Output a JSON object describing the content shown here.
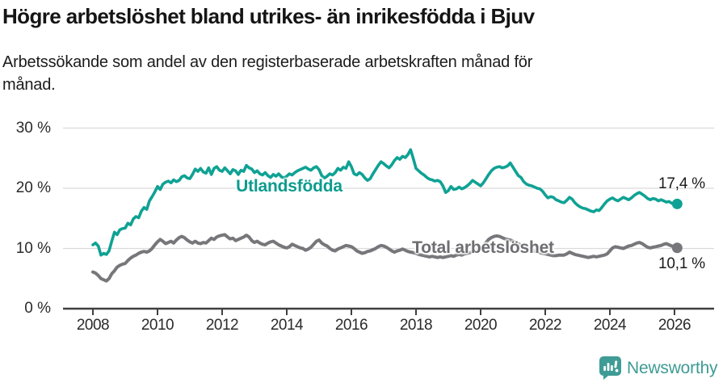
{
  "header": {
    "title": "Högre arbetslöshet bland utrikes- än inrikesfödda i Bjuv",
    "subtitle_lines": [
      "Arbetssökande som andel av den registerbaserade arbetskraften månad för",
      "månad."
    ]
  },
  "chart_data": {
    "type": "line",
    "x_start_year": 2008,
    "x_step_months": 1,
    "x_ticks": [
      {
        "year": 2008,
        "label": "2008"
      },
      {
        "year": 2010,
        "label": "2010"
      },
      {
        "year": 2012,
        "label": "2012"
      },
      {
        "year": 2014,
        "label": "2014"
      },
      {
        "year": 2016,
        "label": "2016"
      },
      {
        "year": 2018,
        "label": "2018"
      },
      {
        "year": 2020,
        "label": "2020"
      },
      {
        "year": 2022,
        "label": "2022"
      },
      {
        "year": 2024,
        "label": "2024"
      },
      {
        "year": 2026,
        "label": "2026"
      }
    ],
    "y_ticks": [
      {
        "value": 0,
        "label": "0 %"
      },
      {
        "value": 10,
        "label": "10 %"
      },
      {
        "value": 20,
        "label": "20 %"
      },
      {
        "value": 30,
        "label": "30 %"
      }
    ],
    "ylim": [
      0,
      30
    ],
    "grid": "horizontal",
    "legend_position": "inline-labels",
    "colors": {
      "gridline": "#dadada",
      "axis": "#3f3f3f",
      "tick_text": "#2b2b2b"
    },
    "series": [
      {
        "name": "Utlandsfödda",
        "color": "#0fa294",
        "label_color": "#0c9c8e",
        "end_label": "17,4 %",
        "end_value": 17.4,
        "values": [
          10.6,
          10.9,
          10.4,
          8.9,
          9.2,
          9.0,
          9.6,
          11.2,
          12.7,
          12.3,
          13.1,
          13.3,
          13.4,
          14.2,
          13.9,
          14.9,
          15.3,
          15.1,
          16.2,
          16.8,
          16.5,
          17.9,
          18.6,
          19.4,
          20.3,
          19.8,
          20.7,
          21.0,
          21.2,
          20.9,
          21.4,
          21.1,
          21.3,
          21.9,
          22.1,
          21.7,
          21.6,
          22.3,
          23.2,
          22.8,
          23.3,
          22.7,
          22.5,
          23.4,
          22.3,
          23.3,
          23.6,
          23.0,
          22.8,
          23.4,
          22.9,
          22.4,
          23.1,
          22.9,
          22.3,
          23.0,
          22.8,
          23.8,
          23.4,
          23.2,
          22.6,
          22.9,
          22.4,
          22.2,
          22.6,
          22.1,
          21.8,
          22.3,
          22.0,
          22.4,
          21.9,
          21.7,
          22.0,
          22.4,
          22.2,
          22.6,
          22.9,
          23.1,
          23.3,
          23.5,
          23.2,
          23.0,
          23.4,
          23.6,
          23.1,
          22.1,
          21.7,
          22.0,
          22.4,
          22.2,
          22.6,
          23.3,
          23.0,
          23.5,
          23.3,
          24.4,
          23.6,
          22.4,
          22.2,
          22.6,
          22.3,
          21.7,
          21.3,
          21.6,
          22.4,
          23.1,
          23.8,
          24.4,
          24.1,
          23.7,
          23.4,
          23.9,
          24.6,
          25.1,
          24.8,
          25.3,
          25.1,
          25.6,
          26.4,
          24.9,
          23.3,
          22.9,
          22.5,
          22.2,
          21.8,
          21.5,
          21.4,
          21.2,
          21.3,
          21.1,
          20.4,
          19.3,
          19.6,
          20.3,
          19.8,
          19.9,
          20.2,
          19.9,
          20.1,
          20.4,
          20.8,
          21.3,
          21.0,
          20.7,
          20.4,
          20.9,
          21.6,
          22.3,
          22.9,
          23.3,
          23.5,
          23.6,
          23.4,
          23.5,
          23.7,
          24.2,
          23.5,
          22.8,
          22.1,
          21.8,
          21.1,
          20.7,
          20.5,
          20.4,
          20.2,
          20.0,
          19.9,
          19.5,
          18.9,
          18.4,
          18.6,
          18.5,
          18.1,
          17.9,
          17.7,
          17.6,
          18.0,
          18.5,
          18.2,
          17.6,
          17.2,
          16.9,
          16.7,
          16.6,
          16.4,
          16.2,
          16.1,
          16.4,
          16.3,
          16.8,
          17.4,
          17.9,
          18.2,
          18.4,
          18.1,
          17.9,
          18.2,
          18.5,
          18.3,
          18.1,
          18.4,
          18.8,
          19.1,
          19.3,
          19.0,
          18.7,
          18.3,
          18.1,
          18.3,
          18.2,
          17.9,
          18.1,
          17.9,
          17.7,
          17.8,
          17.5,
          17.3,
          17.4
        ]
      },
      {
        "name": "Total arbetslöshet",
        "color": "#77777b",
        "label_color": "#6d6d72",
        "end_label": "10,1 %",
        "end_value": 10.1,
        "values": [
          6.1,
          5.9,
          5.5,
          5.0,
          4.8,
          4.6,
          5.0,
          5.8,
          6.3,
          6.9,
          7.2,
          7.4,
          7.5,
          8.0,
          8.4,
          8.7,
          8.9,
          9.2,
          9.4,
          9.5,
          9.4,
          9.6,
          10.0,
          10.6,
          11.1,
          11.5,
          11.2,
          10.8,
          11.0,
          11.2,
          10.9,
          11.4,
          11.8,
          12.0,
          11.8,
          11.4,
          11.1,
          10.9,
          11.2,
          10.9,
          10.8,
          11.0,
          10.9,
          11.3,
          11.7,
          11.5,
          11.9,
          12.1,
          12.2,
          12.3,
          11.9,
          11.6,
          11.7,
          11.3,
          11.5,
          11.7,
          11.9,
          12.2,
          11.9,
          11.3,
          11.0,
          11.2,
          10.9,
          10.7,
          10.6,
          10.9,
          11.1,
          11.2,
          10.9,
          10.6,
          10.4,
          10.2,
          10.1,
          10.3,
          10.7,
          10.5,
          10.3,
          10.1,
          10.0,
          9.7,
          9.9,
          10.2,
          10.7,
          11.2,
          11.4,
          10.9,
          10.6,
          10.4,
          10.0,
          9.7,
          9.6,
          9.9,
          10.1,
          10.3,
          10.5,
          10.4,
          10.3,
          10.0,
          9.6,
          9.4,
          9.2,
          9.3,
          9.5,
          9.6,
          9.8,
          10.0,
          10.3,
          10.5,
          10.4,
          10.2,
          9.9,
          9.6,
          9.4,
          9.6,
          9.7,
          9.9,
          9.7,
          9.5,
          9.4,
          9.3,
          9.2,
          9.0,
          8.9,
          8.8,
          8.7,
          8.6,
          8.7,
          8.6,
          8.5,
          8.6,
          8.5,
          8.6,
          8.7,
          8.8,
          8.7,
          8.9,
          9.0,
          8.9,
          9.1,
          9.2,
          9.3,
          9.5,
          9.6,
          9.8,
          10.0,
          10.4,
          11.0,
          11.5,
          11.8,
          12.0,
          12.1,
          12.0,
          11.8,
          11.6,
          11.5,
          11.4,
          11.2,
          11.0,
          10.8,
          10.5,
          10.3,
          10.1,
          9.9,
          9.7,
          9.6,
          9.5,
          9.3,
          9.2,
          9.1,
          9.0,
          8.9,
          8.8,
          8.8,
          8.9,
          8.9,
          8.9,
          9.1,
          9.4,
          9.2,
          9.0,
          8.9,
          8.8,
          8.7,
          8.6,
          8.5,
          8.6,
          8.7,
          8.6,
          8.7,
          8.8,
          8.9,
          9.1,
          9.6,
          10.1,
          10.3,
          10.2,
          10.1,
          10.0,
          10.2,
          10.4,
          10.5,
          10.7,
          10.9,
          11.0,
          10.8,
          10.5,
          10.2,
          10.1,
          10.2,
          10.3,
          10.4,
          10.5,
          10.7,
          10.8,
          10.6,
          10.4,
          10.2,
          10.1
        ]
      }
    ]
  },
  "footer": {
    "brand": "Newsworthy",
    "brand_color": "#3f9b95"
  }
}
